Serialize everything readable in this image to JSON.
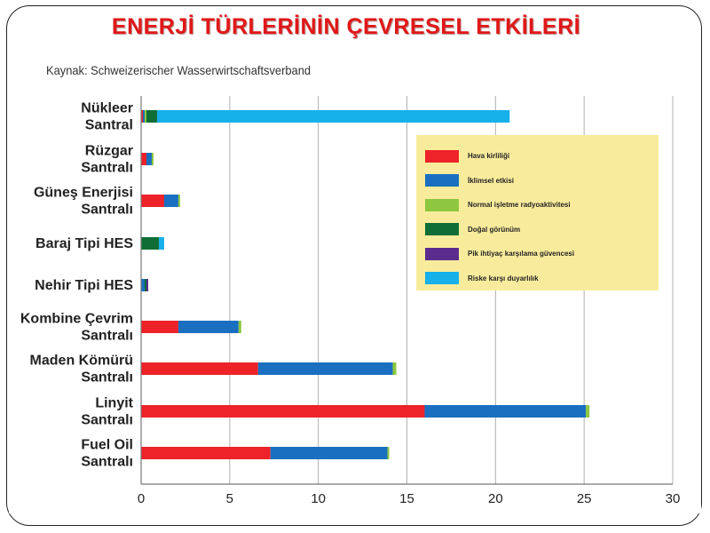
{
  "title": "ENERJİ TÜRLERİNİN ÇEVRESEL  ETKİLERİ",
  "source": "Kaynak: Schweizerischer Wasserwirtschaftsverband",
  "colors": {
    "hava": "#ee2229",
    "iklim": "#1a6fc0",
    "normal": "#8dc63f",
    "dogal": "#0f6e36",
    "pik": "#5b2c8e",
    "risk": "#16b0ea",
    "legend_bg": "#f8ec9c",
    "grid": "#b0b0b0"
  },
  "chart_data": {
    "type": "bar",
    "orientation": "horizontal",
    "stacked": true,
    "categories": [
      [
        "Nükleer",
        "Santral"
      ],
      [
        "Rüzgar",
        "Santralı"
      ],
      [
        "Güneş Enerjisi",
        "Santralı"
      ],
      [
        "Baraj Tipi HES"
      ],
      [
        "Nehir Tipi HES"
      ],
      [
        "Kombine Çevrim",
        "Santralı"
      ],
      [
        "Maden Kömürü",
        "Santralı"
      ],
      [
        "Linyit",
        "Santralı"
      ],
      [
        "Fuel Oil",
        "Santralı"
      ]
    ],
    "series": [
      {
        "name": "Hava kirliliği",
        "color_key": "hava",
        "values": [
          0.1,
          0.3,
          1.3,
          0.0,
          0.0,
          2.1,
          6.6,
          16.0,
          7.3
        ]
      },
      {
        "name": "İklimsel etkisi",
        "color_key": "iklim",
        "values": [
          0.1,
          0.3,
          0.8,
          0.0,
          0.2,
          3.4,
          7.6,
          9.1,
          6.6
        ]
      },
      {
        "name": "Normal işletme radyoaktivitesi",
        "color_key": "normal",
        "values": [
          0.1,
          0.1,
          0.1,
          0.0,
          0.0,
          0.15,
          0.2,
          0.2,
          0.1
        ]
      },
      {
        "name": "Doğal görünüm",
        "color_key": "dogal",
        "values": [
          0.6,
          0.0,
          0.0,
          1.0,
          0.1,
          0.0,
          0.0,
          0.0,
          0.0
        ]
      },
      {
        "name": "Pik ihtiyaç karşılama güvencesi",
        "color_key": "pik",
        "values": [
          0.0,
          0.0,
          0.0,
          0.0,
          0.1,
          0.0,
          0.0,
          0.0,
          0.0
        ]
      },
      {
        "name": "Riske karşı duyarlılık",
        "color_key": "risk",
        "values": [
          19.9,
          0.0,
          0.0,
          0.3,
          0.0,
          0.0,
          0.0,
          0.0,
          0.0
        ]
      }
    ],
    "x_ticks": [
      0,
      5,
      10,
      15,
      20,
      25,
      30
    ],
    "xlim": [
      0,
      30
    ],
    "grid": true,
    "legend_position": "right"
  }
}
